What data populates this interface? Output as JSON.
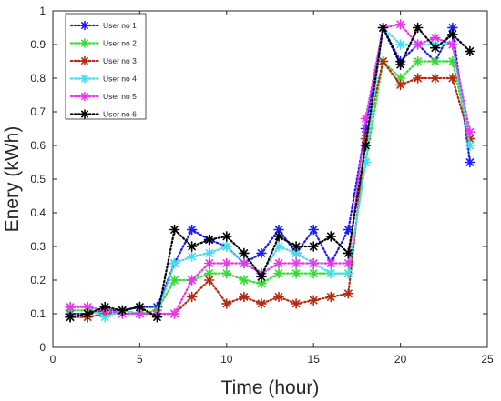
{
  "chart_data": {
    "type": "line",
    "xlabel": "Time (hour)",
    "ylabel": "Enery (kWh)",
    "xlim": [
      0,
      25
    ],
    "ylim": [
      0,
      1
    ],
    "xticks": [
      "0",
      "5",
      "10",
      "15",
      "20",
      "25"
    ],
    "yticks": [
      "0",
      "0.1",
      "0.2",
      "0.3",
      "0.4",
      "0.5",
      "0.6",
      "0.7",
      "0.8",
      "0.9",
      "1"
    ],
    "grid": false,
    "legend_position": "top-left",
    "x": [
      1,
      2,
      3,
      4,
      5,
      6,
      7,
      8,
      9,
      10,
      11,
      12,
      13,
      14,
      15,
      16,
      17,
      18,
      19,
      20,
      21,
      22,
      23,
      24
    ],
    "series": [
      {
        "name": "User no 1",
        "color": "#1a1aff",
        "values": [
          0.1,
          0.1,
          0.11,
          0.11,
          0.12,
          0.12,
          0.25,
          0.35,
          0.32,
          0.3,
          0.25,
          0.28,
          0.35,
          0.28,
          0.35,
          0.25,
          0.35,
          0.65,
          0.95,
          0.85,
          0.9,
          0.85,
          0.95,
          0.55
        ]
      },
      {
        "name": "User no 2",
        "color": "#33dd33",
        "values": [
          0.11,
          0.11,
          0.1,
          0.1,
          0.1,
          0.11,
          0.2,
          0.2,
          0.22,
          0.22,
          0.2,
          0.19,
          0.22,
          0.22,
          0.22,
          0.22,
          0.22,
          0.55,
          0.85,
          0.8,
          0.85,
          0.85,
          0.85,
          0.62
        ]
      },
      {
        "name": "User no 3",
        "color": "#b52a10",
        "values": [
          0.09,
          0.09,
          0.1,
          0.11,
          0.1,
          0.1,
          0.1,
          0.15,
          0.2,
          0.13,
          0.15,
          0.13,
          0.15,
          0.13,
          0.14,
          0.15,
          0.16,
          0.62,
          0.85,
          0.78,
          0.8,
          0.8,
          0.8,
          0.62
        ]
      },
      {
        "name": "User no 4",
        "color": "#44ddee",
        "values": [
          0.12,
          0.12,
          0.09,
          0.11,
          0.1,
          0.1,
          0.25,
          0.27,
          0.28,
          0.3,
          0.25,
          0.22,
          0.3,
          0.28,
          0.25,
          0.22,
          0.22,
          0.55,
          0.95,
          0.9,
          0.9,
          0.9,
          0.9,
          0.6
        ]
      },
      {
        "name": "User no 5",
        "color": "#ee33ee",
        "values": [
          0.12,
          0.12,
          0.11,
          0.1,
          0.1,
          0.1,
          0.1,
          0.2,
          0.25,
          0.25,
          0.25,
          0.22,
          0.25,
          0.25,
          0.25,
          0.25,
          0.25,
          0.68,
          0.95,
          0.96,
          0.9,
          0.92,
          0.9,
          0.64
        ]
      },
      {
        "name": "User no 6",
        "color": "#000000",
        "values": [
          0.09,
          0.1,
          0.12,
          0.11,
          0.12,
          0.09,
          0.35,
          0.3,
          0.32,
          0.33,
          0.28,
          0.21,
          0.33,
          0.3,
          0.3,
          0.33,
          0.28,
          0.6,
          0.95,
          0.84,
          0.95,
          0.89,
          0.93,
          0.88
        ]
      }
    ]
  }
}
